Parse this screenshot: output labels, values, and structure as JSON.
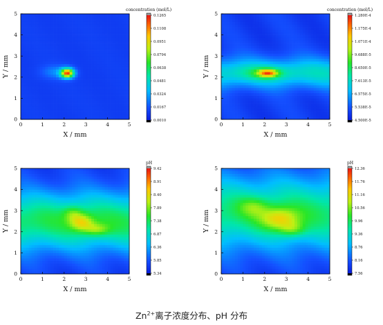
{
  "caption": {
    "prefix": "Zn",
    "sup": "2+",
    "text": "离子浓度分布、pH 分布"
  },
  "chart_data": [
    {
      "type": "heatmap",
      "position": "top-left",
      "xlabel": "X / mm",
      "ylabel": "Y / mm",
      "xlim": [
        0,
        5
      ],
      "ylim": [
        0,
        5
      ],
      "x_ticks": [
        "0",
        "1",
        "2",
        "3",
        "4",
        "5"
      ],
      "y_ticks": [
        "0",
        "1",
        "2",
        "3",
        "4",
        "5"
      ],
      "colorbar": {
        "title": "concentration (mol/L)",
        "labels": [
          "0.1265",
          "0.1108",
          "0.0951",
          "0.0794",
          "0.0638",
          "0.0481",
          "0.0324",
          "0.0167",
          "0.0010"
        ],
        "vmin": 0.001,
        "vmax": 0.1265
      },
      "hotspots": [
        {
          "x": 2.15,
          "y": 2.2,
          "sx": 0.3,
          "sy": 0.22,
          "amp": 0.83
        },
        {
          "x": 1.6,
          "y": 2.25,
          "sx": 0.65,
          "sy": 0.32,
          "amp": 0.12
        }
      ],
      "band": null
    },
    {
      "type": "heatmap",
      "position": "top-right",
      "xlabel": "X / mm",
      "ylabel": "Y / mm",
      "xlim": [
        0,
        5
      ],
      "ylim": [
        0,
        5
      ],
      "x_ticks": [
        "0",
        "1",
        "2",
        "3",
        "4",
        "5"
      ],
      "y_ticks": [
        "0",
        "1",
        "2",
        "3",
        "4",
        "5"
      ],
      "colorbar": {
        "title": "concentration (mol/L)",
        "labels": [
          "1.280E-4",
          "1.175E-4",
          "1.071E-4",
          "9.688E-5",
          "8.650E-5",
          "7.613E-5",
          "6.575E-5",
          "5.538E-5",
          "4.500E-5"
        ],
        "vmin": 4.5e-05,
        "vmax": 0.000128
      },
      "hotspots": [
        {
          "x": 2.15,
          "y": 2.2,
          "sx": 0.45,
          "sy": 0.18,
          "amp": 0.45
        },
        {
          "x": 2.0,
          "y": 2.2,
          "sx": 1.2,
          "sy": 0.35,
          "amp": 0.14
        }
      ],
      "band": {
        "center": 2.2,
        "width": 0.9,
        "amp": 0.28
      }
    },
    {
      "type": "heatmap",
      "position": "bottom-left",
      "xlabel": "X / mm",
      "ylabel": "Y / mm",
      "xlim": [
        0,
        5
      ],
      "ylim": [
        0,
        5
      ],
      "x_ticks": [
        "0",
        "1",
        "2",
        "3",
        "4",
        "5"
      ],
      "y_ticks": [
        "0",
        "1",
        "2",
        "3",
        "4",
        "5"
      ],
      "colorbar": {
        "title": "pH",
        "labels": [
          "9.42",
          "8.91",
          "8.40",
          "7.89",
          "7.38",
          "6.87",
          "6.36",
          "5.85",
          "5.34"
        ],
        "vmin": 5.34,
        "vmax": 9.42
      },
      "hotspots": [
        {
          "x": 2.8,
          "y": 2.45,
          "sx": 0.55,
          "sy": 0.4,
          "amp": 0.28
        },
        {
          "x": 3.5,
          "y": 2.1,
          "sx": 0.6,
          "sy": 0.3,
          "amp": 0.2
        },
        {
          "x": 2.4,
          "y": 2.9,
          "sx": 0.45,
          "sy": 0.35,
          "amp": 0.15
        }
      ],
      "band": {
        "center": 2.5,
        "width": 1.7,
        "amp": 0.42
      }
    },
    {
      "type": "heatmap",
      "position": "bottom-right",
      "xlabel": "X / mm",
      "ylabel": "Y / mm",
      "xlim": [
        0,
        5
      ],
      "ylim": [
        0,
        5
      ],
      "x_ticks": [
        "0",
        "1",
        "2",
        "3",
        "4",
        "5"
      ],
      "y_ticks": [
        "0",
        "1",
        "2",
        "3",
        "4",
        "5"
      ],
      "colorbar": {
        "title": "pH",
        "labels": [
          "12.36",
          "11.76",
          "11.16",
          "10.56",
          "9.96",
          "9.36",
          "8.76",
          "8.16",
          "7.56"
        ],
        "vmin": 7.56,
        "vmax": 12.36
      },
      "hotspots": [
        {
          "x": 2.7,
          "y": 2.6,
          "sx": 0.9,
          "sy": 0.55,
          "amp": 0.32
        },
        {
          "x": 3.3,
          "y": 2.1,
          "sx": 0.6,
          "sy": 0.35,
          "amp": 0.18
        },
        {
          "x": 1.5,
          "y": 3.2,
          "sx": 0.7,
          "sy": 0.45,
          "amp": 0.15
        }
      ],
      "band": {
        "center": 2.9,
        "width": 2.1,
        "amp": 0.4
      }
    }
  ]
}
